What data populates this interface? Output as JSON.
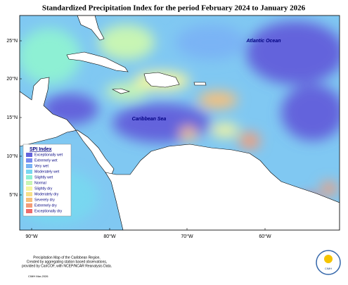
{
  "title": "Standardized Precipitation Index for the period February 2024 to January 2026",
  "map": {
    "labels": [
      "Atlantic Ocean",
      "Caribbean Sea"
    ],
    "lat_labels": [
      "25°N",
      "20°N",
      "15°N",
      "10°N",
      "5°N"
    ],
    "lon_labels": [
      "90°W",
      "80°W",
      "70°W",
      "60°W"
    ]
  },
  "legend": {
    "title": "SPI Index",
    "items": [
      {
        "label": "Exceptionally wet",
        "color": "#6464dc"
      },
      {
        "label": "Extremely wet",
        "color": "#7a8cf0"
      },
      {
        "label": "Very wet",
        "color": "#7ab4f5"
      },
      {
        "label": "Moderately wet",
        "color": "#78d7f0"
      },
      {
        "label": "Slightly wet",
        "color": "#8ef0d4"
      },
      {
        "label": "Normal",
        "color": "#c8f5b4"
      },
      {
        "label": "Slightly dry",
        "color": "#f5f5a0"
      },
      {
        "label": "Moderately dry",
        "color": "#f7df88"
      },
      {
        "label": "Severely dry",
        "color": "#f7c07a"
      },
      {
        "label": "Extremely dry",
        "color": "#f49c78"
      },
      {
        "label": "Exceptionally dry",
        "color": "#ee6c6c"
      }
    ]
  },
  "footnote": [
    "Precipitation Map of the Caribbean Region.",
    "Created by aggregating station based observations,",
    "provided by CariCOF, with NCEP/NCAR Reanalysis Data."
  ],
  "credit": "CIMH Mar-2026",
  "logo": "CIMH"
}
